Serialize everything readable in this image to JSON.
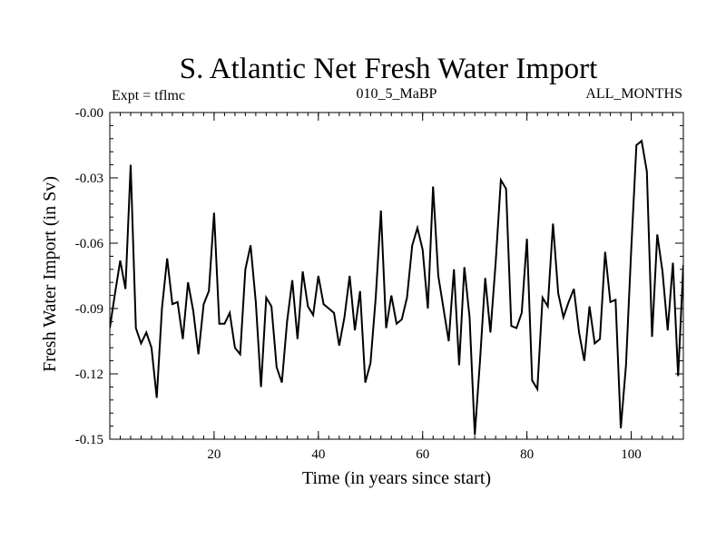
{
  "chart_data": {
    "type": "line",
    "title": "S. Atlantic Net Fresh Water Import",
    "subtitle_left": "Expt = tflmc",
    "subtitle_center": "010_5_MaBP",
    "subtitle_right": "ALL_MONTHS",
    "xlabel": "Time (in years since start)",
    "ylabel": "Fresh Water Import (in Sv)",
    "xlim": [
      0,
      110
    ],
    "ylim": [
      -0.15,
      0.0
    ],
    "xticks": [
      20,
      40,
      60,
      80,
      100
    ],
    "xtick_labels": [
      "20",
      "40",
      "60",
      "80",
      "100"
    ],
    "yticks": [
      -0.15,
      -0.12,
      -0.09,
      -0.06,
      -0.03,
      0.0
    ],
    "ytick_labels": [
      "-0.15",
      "-0.12",
      "-0.09",
      "-0.06",
      "-0.03",
      "-0.00"
    ],
    "grid": false,
    "series": [
      {
        "name": "Fresh Water Import",
        "color": "#000000",
        "x": [
          0,
          1,
          2,
          3,
          4,
          5,
          6,
          7,
          8,
          9,
          10,
          11,
          12,
          13,
          14,
          15,
          16,
          17,
          18,
          19,
          20,
          21,
          22,
          23,
          24,
          25,
          26,
          27,
          28,
          29,
          30,
          31,
          32,
          33,
          34,
          35,
          36,
          37,
          38,
          39,
          40,
          41,
          42,
          43,
          44,
          45,
          46,
          47,
          48,
          49,
          50,
          51,
          52,
          53,
          54,
          55,
          56,
          57,
          58,
          59,
          60,
          61,
          62,
          63,
          64,
          65,
          66,
          67,
          68,
          69,
          70,
          71,
          72,
          73,
          74,
          75,
          76,
          77,
          78,
          79,
          80,
          81,
          82,
          83,
          84,
          85,
          86,
          87,
          88,
          89,
          90,
          91,
          92,
          93,
          94,
          95,
          96,
          97,
          98,
          99,
          100,
          101,
          102,
          103,
          104,
          105,
          106,
          107,
          108,
          109,
          110
        ],
        "values": [
          -0.099,
          -0.083,
          -0.068,
          -0.081,
          -0.024,
          -0.099,
          -0.106,
          -0.101,
          -0.108,
          -0.131,
          -0.09,
          -0.067,
          -0.088,
          -0.087,
          -0.104,
          -0.078,
          -0.091,
          -0.111,
          -0.088,
          -0.082,
          -0.046,
          -0.097,
          -0.097,
          -0.092,
          -0.108,
          -0.111,
          -0.072,
          -0.061,
          -0.087,
          -0.126,
          -0.085,
          -0.089,
          -0.117,
          -0.124,
          -0.096,
          -0.077,
          -0.104,
          -0.073,
          -0.089,
          -0.093,
          -0.075,
          -0.088,
          -0.09,
          -0.092,
          -0.107,
          -0.094,
          -0.075,
          -0.1,
          -0.082,
          -0.124,
          -0.115,
          -0.085,
          -0.045,
          -0.099,
          -0.084,
          -0.097,
          -0.095,
          -0.085,
          -0.061,
          -0.053,
          -0.063,
          -0.09,
          -0.034,
          -0.075,
          -0.09,
          -0.105,
          -0.072,
          -0.116,
          -0.071,
          -0.094,
          -0.148,
          -0.114,
          -0.076,
          -0.101,
          -0.069,
          -0.031,
          -0.035,
          -0.098,
          -0.099,
          -0.092,
          -0.058,
          -0.123,
          -0.127,
          -0.085,
          -0.089,
          -0.051,
          -0.083,
          -0.094,
          -0.087,
          -0.081,
          -0.101,
          -0.114,
          -0.089,
          -0.106,
          -0.104,
          -0.064,
          -0.087,
          -0.086,
          -0.145,
          -0.116,
          -0.063,
          -0.015,
          -0.013,
          -0.027,
          -0.103,
          -0.056,
          -0.073,
          -0.1,
          -0.069,
          -0.121,
          -0.07
        ]
      }
    ]
  }
}
